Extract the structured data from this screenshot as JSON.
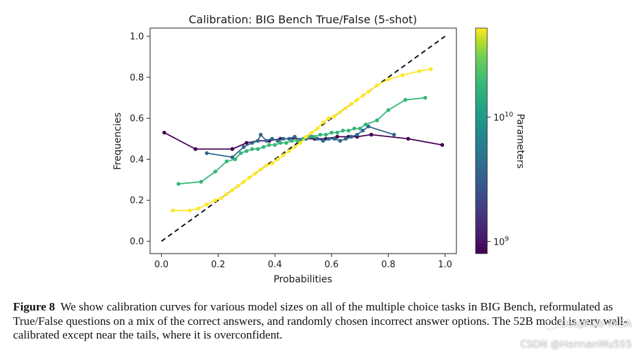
{
  "chart_data": {
    "type": "line",
    "title": "Calibration: BIG Bench True/False (5-shot)",
    "xlabel": "Probabilities",
    "ylabel": "Frequencies",
    "xlim": [
      -0.04,
      1.04
    ],
    "ylim": [
      -0.06,
      1.04
    ],
    "x_ticks": [
      "0.0",
      "0.2",
      "0.4",
      "0.6",
      "0.8",
      "1.0"
    ],
    "y_ticks": [
      "0.0",
      "0.2",
      "0.4",
      "0.6",
      "0.8",
      "1.0"
    ],
    "grid": false,
    "reference_line": {
      "style": "dashed",
      "color": "#111111",
      "points": [
        [
          0,
          0
        ],
        [
          1,
          1
        ]
      ]
    },
    "colorbar": {
      "label": "Parameters",
      "scale": "log",
      "colormap": "viridis",
      "ticks": [
        {
          "label_base": "10",
          "label_exp": "9",
          "value": 1000000000
        },
        {
          "label_base": "10",
          "label_exp": "10",
          "value": 10000000000
        }
      ],
      "range": [
        800000000,
        52000000000
      ]
    },
    "series": [
      {
        "color": "#440154",
        "x": [
          0.01,
          0.12,
          0.25,
          0.3,
          0.34,
          0.38,
          0.42,
          0.46,
          0.5,
          0.54,
          0.58,
          0.62,
          0.66,
          0.69,
          0.74,
          0.87,
          0.99
        ],
        "y": [
          0.53,
          0.45,
          0.45,
          0.48,
          0.49,
          0.49,
          0.5,
          0.5,
          0.5,
          0.5,
          0.5,
          0.51,
          0.51,
          0.51,
          0.52,
          0.5,
          0.47
        ]
      },
      {
        "color": "#31688e",
        "x": [
          0.16,
          0.25,
          0.29,
          0.32,
          0.34,
          0.35,
          0.37,
          0.39,
          0.41,
          0.43,
          0.45,
          0.47,
          0.49,
          0.51,
          0.53,
          0.55,
          0.57,
          0.59,
          0.61,
          0.63,
          0.65,
          0.67,
          0.69,
          0.71,
          0.73,
          0.82
        ],
        "y": [
          0.43,
          0.41,
          0.46,
          0.48,
          0.49,
          0.52,
          0.49,
          0.5,
          0.49,
          0.5,
          0.5,
          0.51,
          0.49,
          0.5,
          0.51,
          0.5,
          0.49,
          0.5,
          0.5,
          0.49,
          0.5,
          0.51,
          0.52,
          0.54,
          0.56,
          0.52
        ]
      },
      {
        "color": "#35b779",
        "x": [
          0.06,
          0.14,
          0.19,
          0.23,
          0.26,
          0.28,
          0.3,
          0.32,
          0.34,
          0.36,
          0.38,
          0.4,
          0.42,
          0.44,
          0.46,
          0.48,
          0.5,
          0.52,
          0.54,
          0.56,
          0.58,
          0.6,
          0.62,
          0.64,
          0.66,
          0.68,
          0.7,
          0.72,
          0.76,
          0.8,
          0.86,
          0.93
        ],
        "y": [
          0.28,
          0.29,
          0.34,
          0.39,
          0.4,
          0.43,
          0.44,
          0.45,
          0.45,
          0.46,
          0.47,
          0.47,
          0.48,
          0.48,
          0.49,
          0.49,
          0.5,
          0.51,
          0.51,
          0.52,
          0.52,
          0.53,
          0.53,
          0.54,
          0.54,
          0.55,
          0.55,
          0.57,
          0.59,
          0.64,
          0.69,
          0.7
        ]
      },
      {
        "color": "#fde725",
        "x": [
          0.04,
          0.1,
          0.13,
          0.16,
          0.19,
          0.21,
          0.23,
          0.25,
          0.27,
          0.29,
          0.31,
          0.33,
          0.35,
          0.37,
          0.39,
          0.41,
          0.43,
          0.45,
          0.47,
          0.49,
          0.51,
          0.53,
          0.55,
          0.57,
          0.59,
          0.61,
          0.63,
          0.65,
          0.67,
          0.69,
          0.71,
          0.73,
          0.76,
          0.8,
          0.85,
          0.91,
          0.95
        ],
        "y": [
          0.15,
          0.15,
          0.16,
          0.18,
          0.2,
          0.21,
          0.23,
          0.25,
          0.27,
          0.29,
          0.31,
          0.33,
          0.35,
          0.37,
          0.38,
          0.4,
          0.42,
          0.44,
          0.46,
          0.48,
          0.51,
          0.53,
          0.55,
          0.58,
          0.6,
          0.61,
          0.63,
          0.65,
          0.67,
          0.69,
          0.71,
          0.73,
          0.76,
          0.79,
          0.81,
          0.83,
          0.84
        ]
      }
    ]
  },
  "caption": {
    "label": "Figure 8",
    "text": "We show calibration curves for various model sizes on all of the multiple choice tasks in BIG Bench, reformulated as True/False questions on a mix of the correct answers, and randomly chosen incorrect answer options. The 52B model is very well-calibrated except near the tails, where it is overconfident."
  },
  "watermark": {
    "line1": "DeepHub IMBA",
    "line2": "CSDN @HermanWu555"
  }
}
